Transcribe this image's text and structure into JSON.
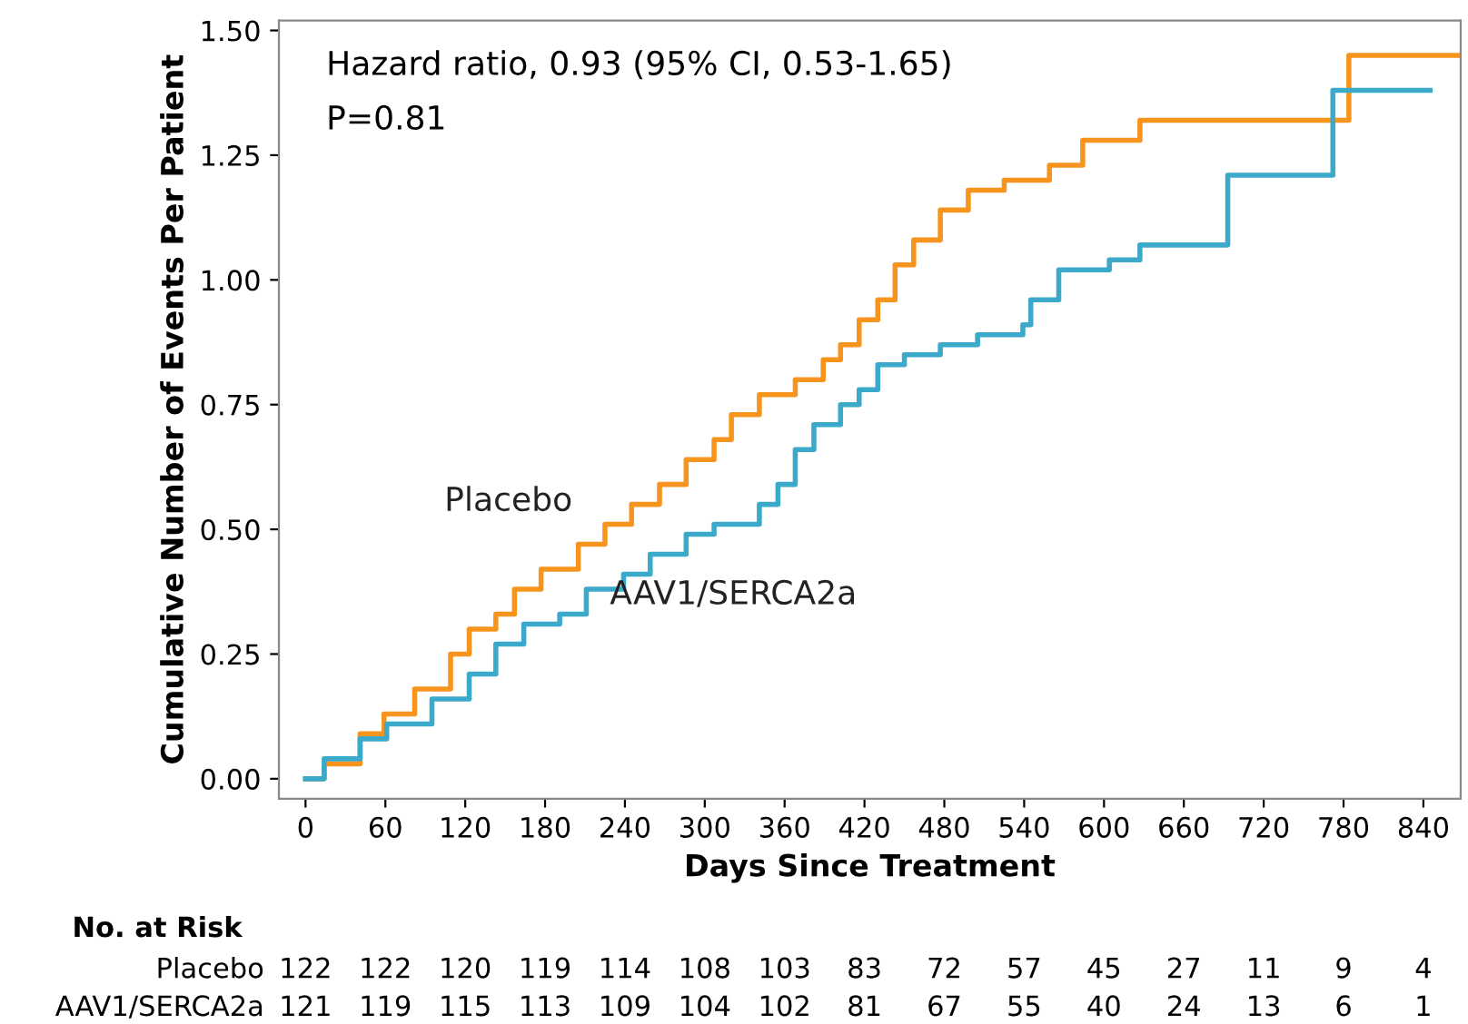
{
  "chart_data": {
    "type": "step",
    "xlabel": "Days Since Treatment",
    "ylabel": "Cumulative Number of Events Per Patient",
    "xlim": [
      -20,
      868
    ],
    "ylim": [
      -0.04,
      1.52
    ],
    "xticks": [
      0,
      60,
      120,
      180,
      240,
      300,
      360,
      420,
      480,
      540,
      600,
      660,
      720,
      780,
      840
    ],
    "yticks": [
      {
        "value": 0,
        "label": "0.00"
      },
      {
        "value": 0.25,
        "label": "0.25"
      },
      {
        "value": 0.5,
        "label": "0.50"
      },
      {
        "value": 0.75,
        "label": "0.75"
      },
      {
        "value": 1.0,
        "label": "1.00"
      },
      {
        "value": 1.25,
        "label": "1.25"
      },
      {
        "value": 1.5,
        "label": "1.50"
      }
    ],
    "grid": false,
    "legend": false,
    "marker": "none",
    "line_style": "solid",
    "series": [
      {
        "name": "Placebo",
        "color": "#f7941d",
        "x": [
          0,
          14,
          41,
          59,
          82,
          109,
          123,
          143,
          157,
          177,
          205,
          225,
          245,
          266,
          286,
          307,
          320,
          341,
          368,
          389,
          402,
          416,
          430,
          443,
          457,
          477,
          498,
          525,
          559,
          584,
          627,
          784,
          867
        ],
        "values": [
          0,
          0.03,
          0.09,
          0.13,
          0.18,
          0.25,
          0.3,
          0.33,
          0.38,
          0.42,
          0.47,
          0.51,
          0.55,
          0.59,
          0.64,
          0.68,
          0.73,
          0.77,
          0.8,
          0.84,
          0.87,
          0.92,
          0.96,
          1.03,
          1.08,
          1.14,
          1.18,
          1.2,
          1.23,
          1.28,
          1.32,
          1.45,
          1.45
        ]
      },
      {
        "name": "AAV1/SERCA2a",
        "color": "#3ba9c9",
        "x": [
          0,
          14,
          41,
          61,
          95,
          123,
          143,
          164,
          191,
          211,
          239,
          259,
          286,
          307,
          341,
          355,
          368,
          382,
          402,
          416,
          430,
          450,
          477,
          505,
          539,
          545,
          566,
          604,
          627,
          693,
          772,
          845
        ],
        "values": [
          0,
          0.04,
          0.08,
          0.11,
          0.16,
          0.21,
          0.27,
          0.31,
          0.33,
          0.38,
          0.41,
          0.45,
          0.49,
          0.51,
          0.55,
          0.59,
          0.66,
          0.71,
          0.75,
          0.78,
          0.83,
          0.85,
          0.87,
          0.89,
          0.91,
          0.96,
          1.02,
          1.04,
          1.07,
          1.21,
          1.38,
          1.38
        ]
      }
    ],
    "annotations": [
      "Hazard ratio, 0.93 (95% CI, 0.53-1.65)",
      "P=0.81",
      "No. at Risk",
      "Placebo",
      "122 122 120 119 114 108 103 83 72 57 45 27 11 9 4",
      "AAV1/SERCA2a",
      "121 119 115 113 109 104 102 81 67 55 40 24 13 6 1"
    ]
  }
}
